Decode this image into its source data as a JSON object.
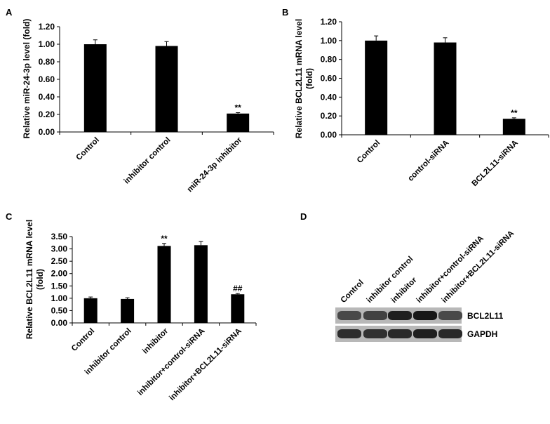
{
  "chart_data": [
    {
      "type": "bar",
      "panel": "A",
      "ylabel": "Relative miR-24-3p level (fold)",
      "ylim": [
        0,
        1.2
      ],
      "yticks": [
        "0.00",
        "0.20",
        "0.40",
        "0.60",
        "0.80",
        "1.00",
        "1.20"
      ],
      "categories": [
        "Control",
        "inhibitor control",
        "miR-24-3p inhibitor"
      ],
      "values": [
        1.0,
        0.98,
        0.21
      ],
      "errors": [
        0.05,
        0.05,
        0.01
      ],
      "annotations": [
        "",
        "",
        "**"
      ],
      "color": "#000000"
    },
    {
      "type": "bar",
      "panel": "B",
      "ylabel": "Relative BCL2L11 mRNA level (fold)",
      "ylim": [
        0,
        1.2
      ],
      "yticks": [
        "0.00",
        "0.20",
        "0.40",
        "0.60",
        "0.80",
        "1.00",
        "1.20"
      ],
      "categories": [
        "Control",
        "control-siRNA",
        "BCL2L11-siRNA"
      ],
      "values": [
        1.0,
        0.98,
        0.17
      ],
      "errors": [
        0.05,
        0.05,
        0.01
      ],
      "annotations": [
        "",
        "",
        "**"
      ],
      "color": "#000000"
    },
    {
      "type": "bar",
      "panel": "C",
      "ylabel": "Relative BCL2L11 mRNA level (fold)",
      "ylim": [
        0,
        3.5
      ],
      "yticks": [
        "0.00",
        "0.50",
        "1.00",
        "1.50",
        "2.00",
        "2.50",
        "3.00",
        "3.50"
      ],
      "categories": [
        "Control",
        "inhibitor control",
        "inhibitor",
        "inhibitor+control-siRNA",
        "inhibitor+BCL2L11-siRNA"
      ],
      "values": [
        1.0,
        0.97,
        3.12,
        3.15,
        1.16
      ],
      "errors": [
        0.05,
        0.05,
        0.1,
        0.15,
        0.03
      ],
      "annotations": [
        "",
        "",
        "**",
        "",
        "##"
      ],
      "color": "#000000"
    }
  ],
  "blot": {
    "panel": "D",
    "lanes": [
      "Control",
      "inhibitor control",
      "inhibitor",
      "inhibitor+control-siRNA",
      "inhibitor+BCL2L11-siRNA"
    ],
    "rows": [
      {
        "label": "BCL2L11",
        "intensity": [
          0.55,
          0.6,
          0.85,
          0.9,
          0.55
        ]
      },
      {
        "label": "GAPDH",
        "intensity": [
          0.75,
          0.72,
          0.78,
          0.85,
          0.78
        ]
      }
    ]
  }
}
